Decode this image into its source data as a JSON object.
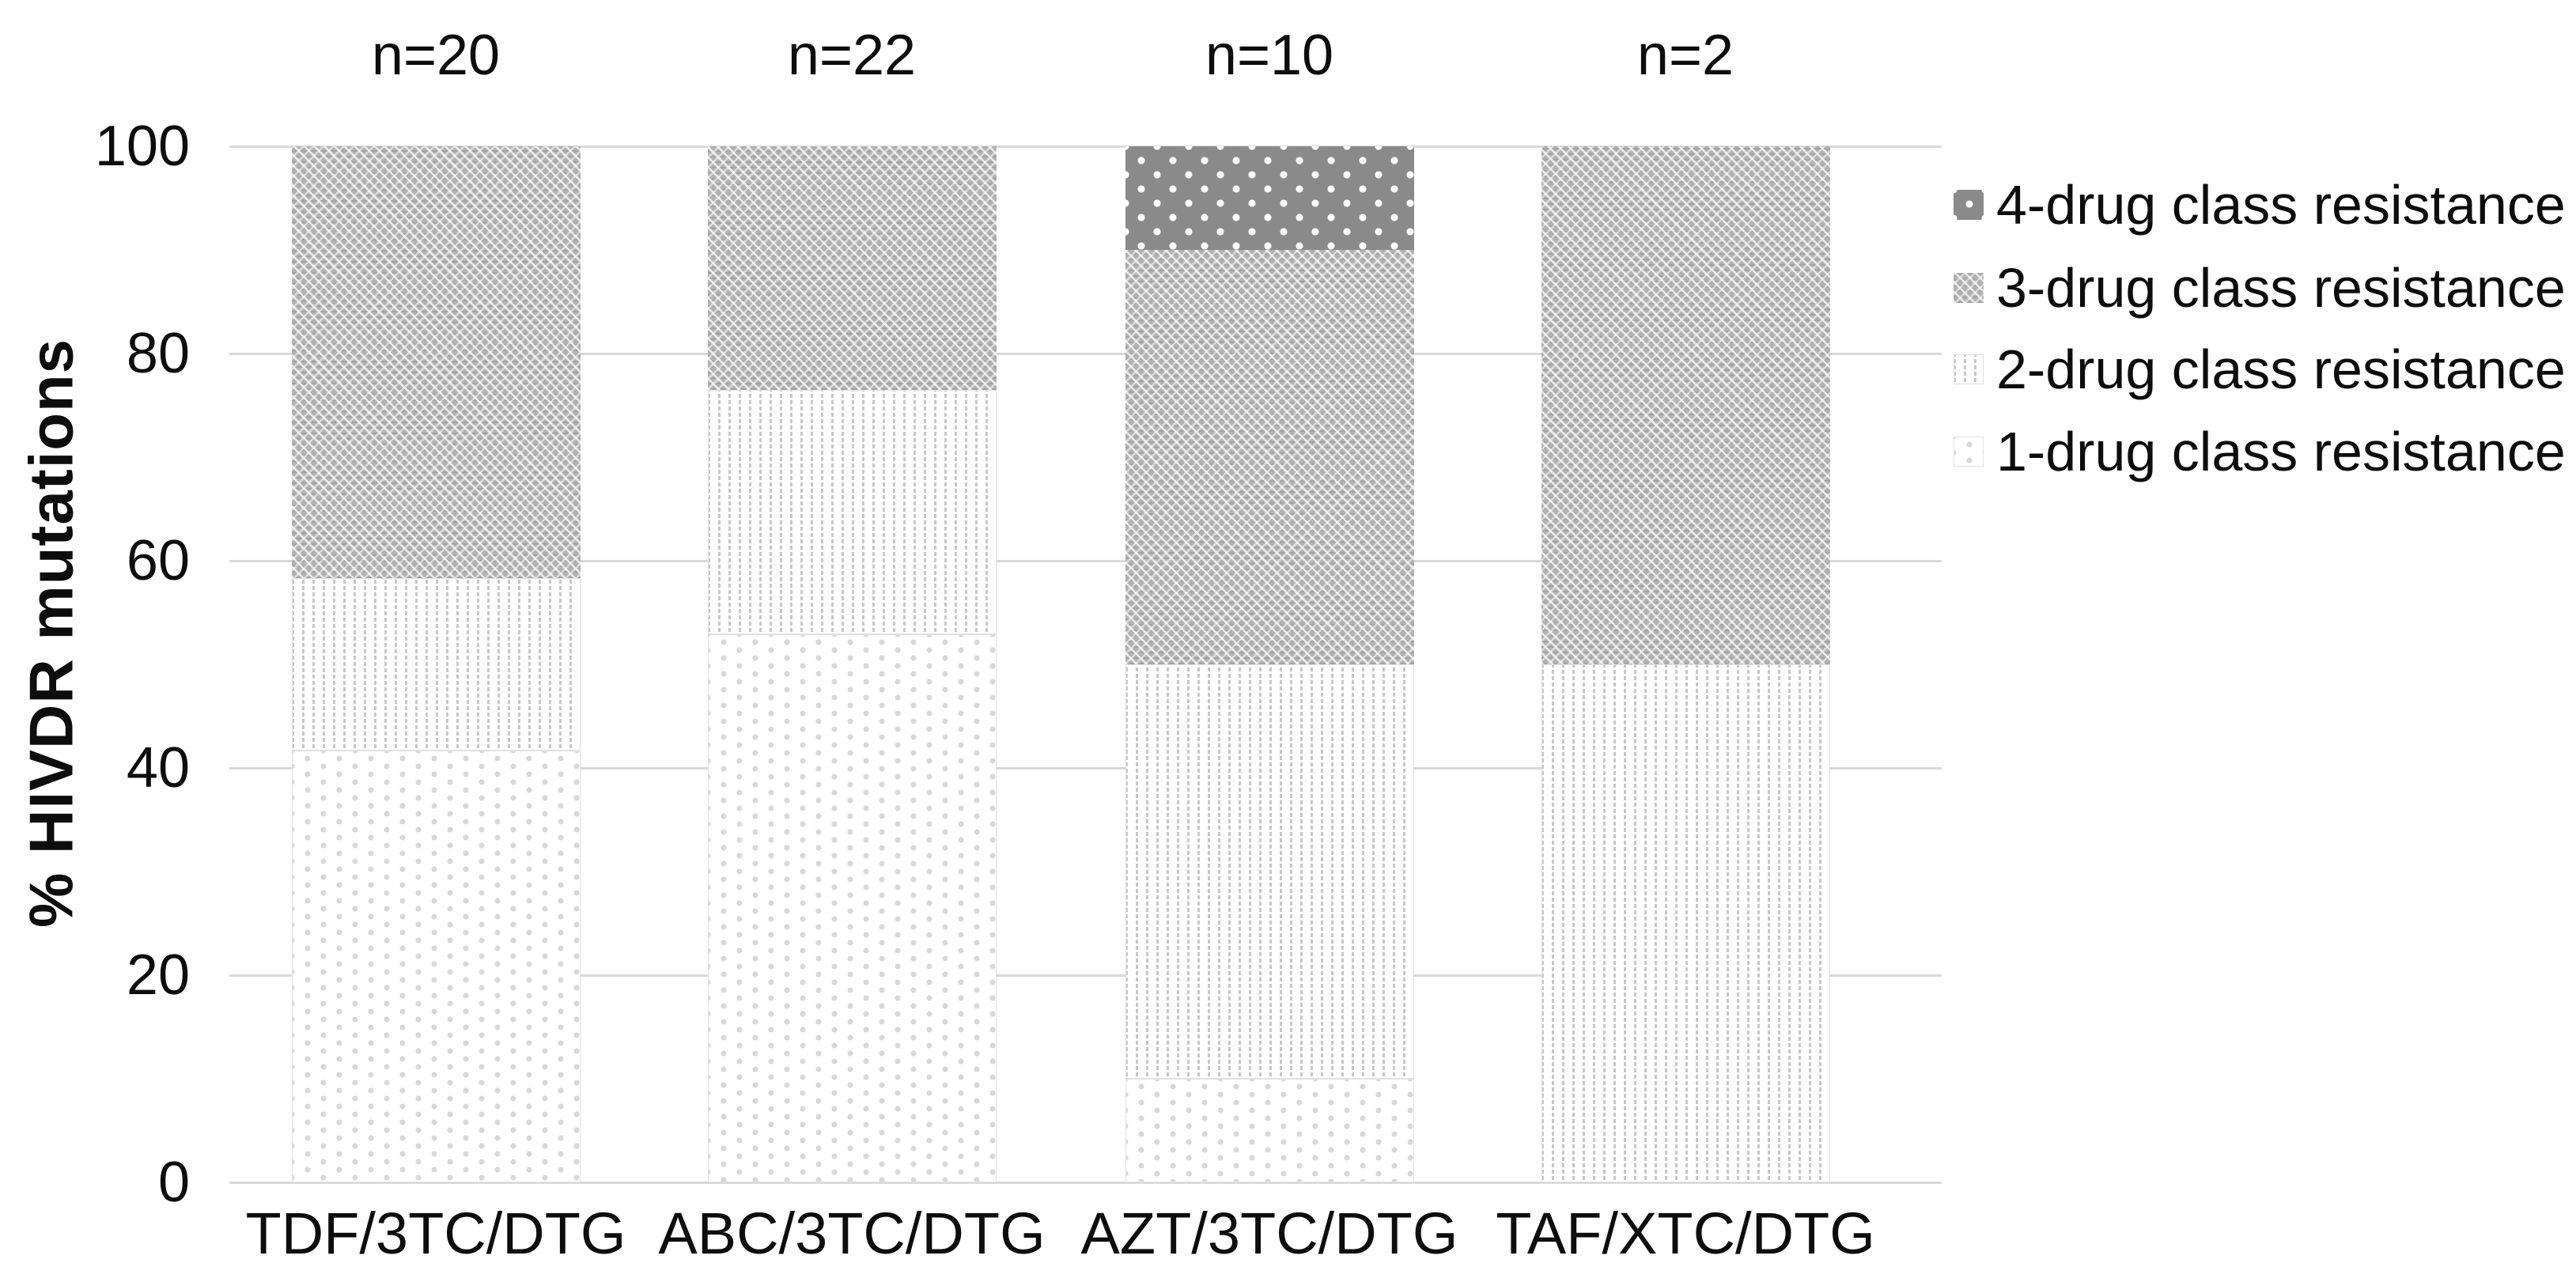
{
  "chart_data": {
    "type": "bar",
    "stacked": true,
    "title": "",
    "xlabel": "",
    "ylabel": "% HIVDR mutations",
    "ylim": [
      0,
      100
    ],
    "yticks": [
      0,
      20,
      40,
      60,
      80,
      100
    ],
    "grid": "horizontal light gray lines, bars drawn over grid",
    "legend_position": "right-top",
    "categories": [
      "TDF/3TC/DTG",
      "ABC/3TC/DTG",
      "AZT/3TC/DTG",
      "TAF/XTC/DTG"
    ],
    "bar_annotations": [
      "n=20",
      "n=22",
      "n=10",
      "n=2"
    ],
    "series": [
      {
        "key": "d1",
        "name": "1-drug class resistance",
        "pattern": "white-with-sparse-gray-dots",
        "values": [
          41.7,
          52.9,
          10,
          0
        ]
      },
      {
        "key": "d2",
        "name": "2-drug class resistance",
        "pattern": "white-with-dotted-vertical-columns",
        "values": [
          16.6,
          23.6,
          40,
          50
        ]
      },
      {
        "key": "d3",
        "name": "3-drug class resistance",
        "pattern": "medium-gray-diagonal-weave",
        "values": [
          41.7,
          23.5,
          40,
          50
        ]
      },
      {
        "key": "d4",
        "name": "4-drug class resistance",
        "pattern": "dark-gray-with-white-polka-dots",
        "values": [
          0,
          0,
          10,
          0
        ]
      }
    ],
    "colors": {
      "background": "#ffffff",
      "grid": "#d9d9d9",
      "text": "#0d0d0d",
      "pattern_dark_gray": "#8a8a8a",
      "pattern_medium_gray": "#b2b2b2",
      "pattern_light_dot_gray": "#d8d8d8"
    }
  },
  "legend": {
    "order": [
      3,
      2,
      1,
      0
    ]
  }
}
